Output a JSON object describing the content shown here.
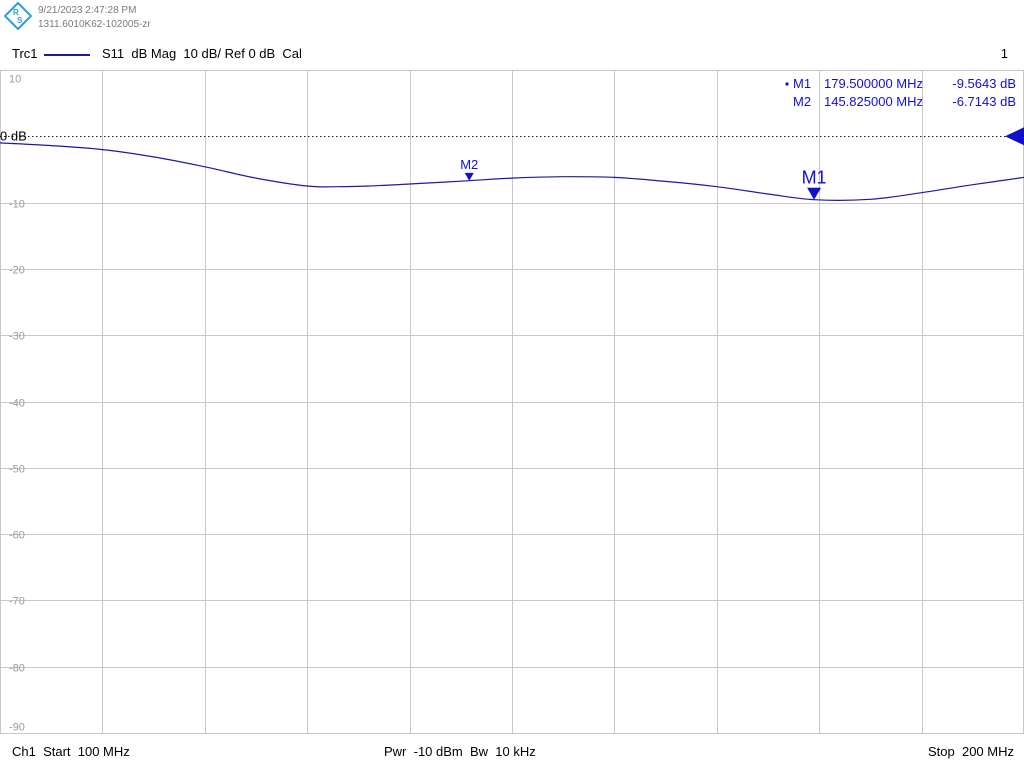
{
  "header": {
    "date_time": "9/21/2023 2:47:28 PM",
    "serial": "1311.6010K62-102005-zr",
    "logo_icon": "rohde-schwarz-logo-icon",
    "logo_letters": [
      "R",
      "S"
    ]
  },
  "trace": {
    "name": "Trc1",
    "description": "S11  dB Mag  10 dB/ Ref 0 dB  Cal",
    "channel_number": "1",
    "color": "#1a1aa6"
  },
  "markers": [
    {
      "label": "M1",
      "active": true,
      "readout_freq": "179.500000  MHz",
      "readout_value": "-9.5643  dB"
    },
    {
      "label": "M2",
      "active": false,
      "readout_freq": "145.825000  MHz",
      "readout_value": "-6.7143  dB"
    }
  ],
  "footer": {
    "start": "Ch1  Start  100 MHz",
    "power_bw": "Pwr  -10 dBm  Bw  10 kHz",
    "stop": "Stop  200 MHz"
  },
  "chart_data": {
    "type": "line",
    "xlabel": "",
    "ylabel": "",
    "x_unit": "MHz",
    "y_unit": "dB",
    "xlim": [
      100,
      200
    ],
    "ylim": [
      -90,
      10
    ],
    "y_ticks": [
      10,
      0,
      -10,
      -20,
      -30,
      -40,
      -50,
      -60,
      -70,
      -80,
      -90
    ],
    "y_tick_labels": [
      "10",
      "0 dB",
      "-10",
      "-20",
      "-30",
      "-40",
      "-50",
      "-60",
      "-70",
      "-80",
      "-90"
    ],
    "x_divisions": 10,
    "grid": true,
    "reference": {
      "value": 0,
      "label": "0 dB"
    },
    "series": [
      {
        "x": [
          100,
          105,
          110,
          115,
          120,
          125,
          130,
          133,
          136,
          140,
          145.825,
          150,
          155,
          160,
          165,
          170,
          175,
          179.5,
          185,
          190,
          195,
          200
        ],
        "y": [
          -1.0,
          -1.4,
          -2.0,
          -3.1,
          -4.6,
          -6.3,
          -7.5,
          -7.6,
          -7.5,
          -7.2,
          -6.7,
          -6.3,
          -6.1,
          -6.2,
          -6.8,
          -7.6,
          -8.7,
          -9.56,
          -9.5,
          -8.5,
          -7.3,
          -6.2
        ]
      }
    ],
    "marker_points": [
      {
        "label": "M1",
        "x": 179.5,
        "y": -9.5643
      },
      {
        "label": "M2",
        "x": 145.825,
        "y": -6.7143
      }
    ]
  }
}
